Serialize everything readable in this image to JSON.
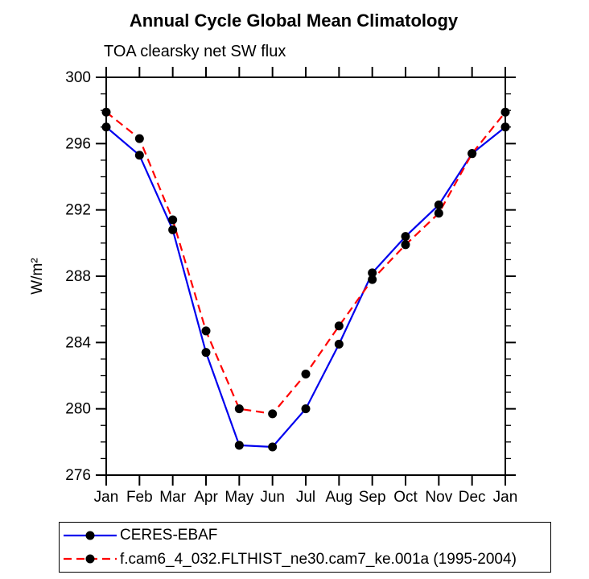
{
  "title": "Annual Cycle Global Mean Climatology",
  "subtitle": "TOA clearsky net SW flux",
  "chart_data": {
    "type": "line",
    "categories": [
      "Jan",
      "Feb",
      "Mar",
      "Apr",
      "May",
      "Jun",
      "Jul",
      "Aug",
      "Sep",
      "Oct",
      "Nov",
      "Dec",
      "Jan"
    ],
    "series": [
      {
        "name": "CERES-EBAF",
        "color": "#0000ee",
        "line_style": "solid",
        "marker": "circle",
        "marker_color": "#000000",
        "values": [
          297.0,
          295.3,
          290.8,
          283.4,
          277.8,
          277.7,
          280.0,
          283.9,
          288.2,
          290.4,
          292.3,
          295.4,
          297.0
        ]
      },
      {
        "name": "f.cam6_4_032.FLTHIST_ne30.cam7_ke.001a (1995-2004)",
        "color": "#ff0000",
        "line_style": "dashed",
        "marker": "circle",
        "marker_color": "#000000",
        "values": [
          297.9,
          296.3,
          291.4,
          284.7,
          280.0,
          279.7,
          282.1,
          285.0,
          287.8,
          289.9,
          291.8,
          295.4,
          297.9
        ]
      }
    ],
    "xlabel": "",
    "ylabel": "W/m²",
    "ylim": [
      276,
      300
    ],
    "ytick_step": 4,
    "yminor_step": 1,
    "x_minor_ticks": false,
    "grid": false,
    "frame": "box-with-outward-ticks",
    "legend_position": "bottom-left",
    "axis_color": "#000000",
    "background_color": "#ffffff"
  }
}
